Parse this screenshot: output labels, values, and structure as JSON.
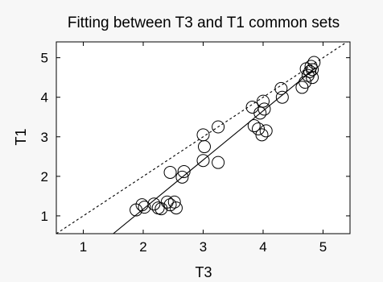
{
  "chart_data": {
    "type": "scatter",
    "title": "Fitting between T3 and T1 common sets",
    "xlabel": "T3",
    "ylabel": "T1",
    "xlim": [
      0.55,
      5.45
    ],
    "ylim": [
      0.55,
      5.4
    ],
    "x_ticks": [
      1,
      2,
      3,
      4,
      5
    ],
    "y_ticks": [
      1,
      2,
      3,
      4,
      5
    ],
    "x_tick_labels": [
      "1",
      "2",
      "3",
      "4",
      "5"
    ],
    "y_tick_labels": [
      "1",
      "2",
      "3",
      "4",
      "5"
    ],
    "grid": false,
    "legend": "none",
    "marker": "open-circle",
    "colors": {
      "axis": "#000000",
      "marker": "#000000",
      "background": "#ffffff",
      "page": "#f7f7f7"
    },
    "points": [
      {
        "x": 1.88,
        "y": 1.15
      },
      {
        "x": 1.98,
        "y": 1.28
      },
      {
        "x": 2.02,
        "y": 1.22
      },
      {
        "x": 2.18,
        "y": 1.3
      },
      {
        "x": 2.25,
        "y": 1.2
      },
      {
        "x": 2.3,
        "y": 1.18
      },
      {
        "x": 2.4,
        "y": 1.35
      },
      {
        "x": 2.45,
        "y": 1.28
      },
      {
        "x": 2.52,
        "y": 1.35
      },
      {
        "x": 2.55,
        "y": 1.2
      },
      {
        "x": 2.45,
        "y": 2.1
      },
      {
        "x": 2.65,
        "y": 1.98
      },
      {
        "x": 2.68,
        "y": 2.12
      },
      {
        "x": 3.0,
        "y": 2.4
      },
      {
        "x": 3.02,
        "y": 2.75
      },
      {
        "x": 3.0,
        "y": 3.05
      },
      {
        "x": 3.25,
        "y": 3.25
      },
      {
        "x": 3.25,
        "y": 2.35
      },
      {
        "x": 3.82,
        "y": 3.75
      },
      {
        "x": 3.85,
        "y": 3.28
      },
      {
        "x": 3.92,
        "y": 3.2
      },
      {
        "x": 3.95,
        "y": 3.6
      },
      {
        "x": 3.98,
        "y": 3.05
      },
      {
        "x": 4.02,
        "y": 3.7
      },
      {
        "x": 4.0,
        "y": 3.9
      },
      {
        "x": 4.05,
        "y": 3.15
      },
      {
        "x": 4.3,
        "y": 4.22
      },
      {
        "x": 4.32,
        "y": 4.0
      },
      {
        "x": 4.65,
        "y": 4.25
      },
      {
        "x": 4.7,
        "y": 4.38
      },
      {
        "x": 4.72,
        "y": 4.72
      },
      {
        "x": 4.75,
        "y": 4.55
      },
      {
        "x": 4.78,
        "y": 4.65
      },
      {
        "x": 4.8,
        "y": 4.78
      },
      {
        "x": 4.82,
        "y": 4.5
      },
      {
        "x": 4.82,
        "y": 4.7
      },
      {
        "x": 4.85,
        "y": 4.88
      }
    ],
    "lines": [
      {
        "style": "dashed",
        "x": [
          0.55,
          5.4
        ],
        "y": [
          0.55,
          5.4
        ]
      },
      {
        "style": "solid",
        "x": [
          1.5,
          4.88
        ],
        "y": [
          0.55,
          4.75
        ]
      }
    ]
  }
}
